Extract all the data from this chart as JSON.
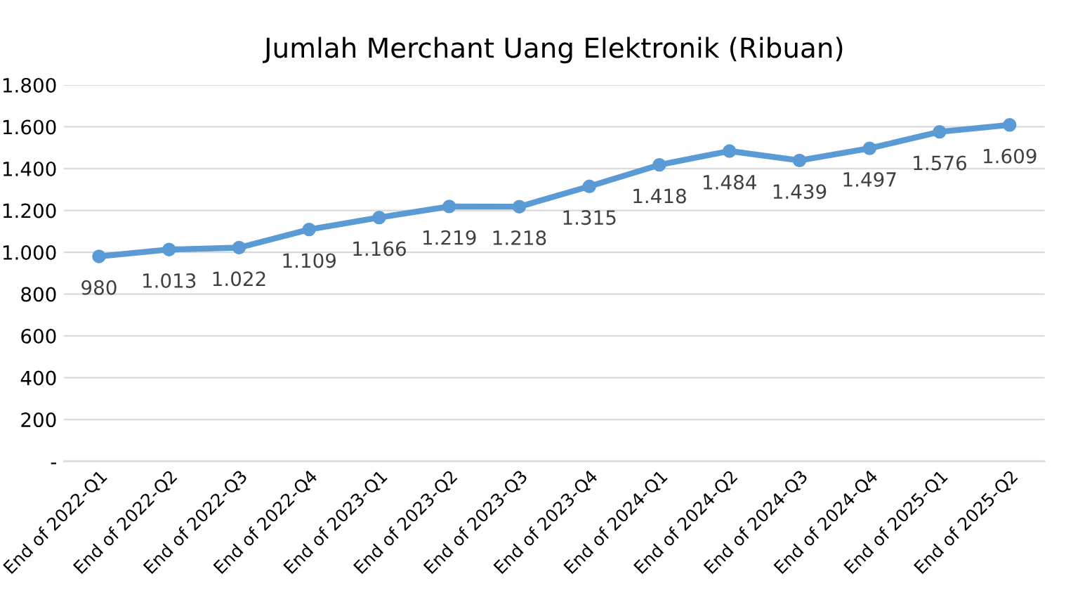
{
  "chart_data": {
    "type": "line",
    "title": "Jumlah Merchant Uang Elektronik (Ribuan)",
    "categories": [
      "End of 2022-Q1",
      "End of 2022-Q2",
      "End of 2022-Q3",
      "End of 2022-Q4",
      "End of 2023-Q1",
      "End of 2023-Q2",
      "End of 2023-Q3",
      "End of 2023-Q4",
      "End of 2024-Q1",
      "End of 2024-Q2",
      "End of 2024-Q3",
      "End of 2024-Q4",
      "End of 2025-Q1",
      "End of 2025-Q2"
    ],
    "series": [
      {
        "color": "#5b9bd5",
        "values": [
          980,
          1013,
          1022,
          1109,
          1166,
          1219,
          1218,
          1315,
          1418,
          1484,
          1439,
          1497,
          1576,
          1609
        ],
        "value_labels": [
          "980",
          "1.013",
          "1.022",
          "1.109",
          "1.166",
          "1.219",
          "1.218",
          "1.315",
          "1.418",
          "1.484",
          "1.439",
          "1.497",
          "1.576",
          "1.609"
        ]
      }
    ],
    "ylim": [
      0,
      1800
    ],
    "yticks": [
      {
        "value": 0,
        "label": "-"
      },
      {
        "value": 200,
        "label": "200"
      },
      {
        "value": 400,
        "label": "400"
      },
      {
        "value": 600,
        "label": "600"
      },
      {
        "value": 800,
        "label": "800"
      },
      {
        "value": 1000,
        "label": "1.000"
      },
      {
        "value": 1200,
        "label": "1.200"
      },
      {
        "value": 1400,
        "label": "1.400"
      },
      {
        "value": 1600,
        "label": "1.600"
      },
      {
        "value": 1800,
        "label": "1.800"
      }
    ],
    "grid": "y",
    "marker": "circle",
    "line_style": "solid"
  }
}
